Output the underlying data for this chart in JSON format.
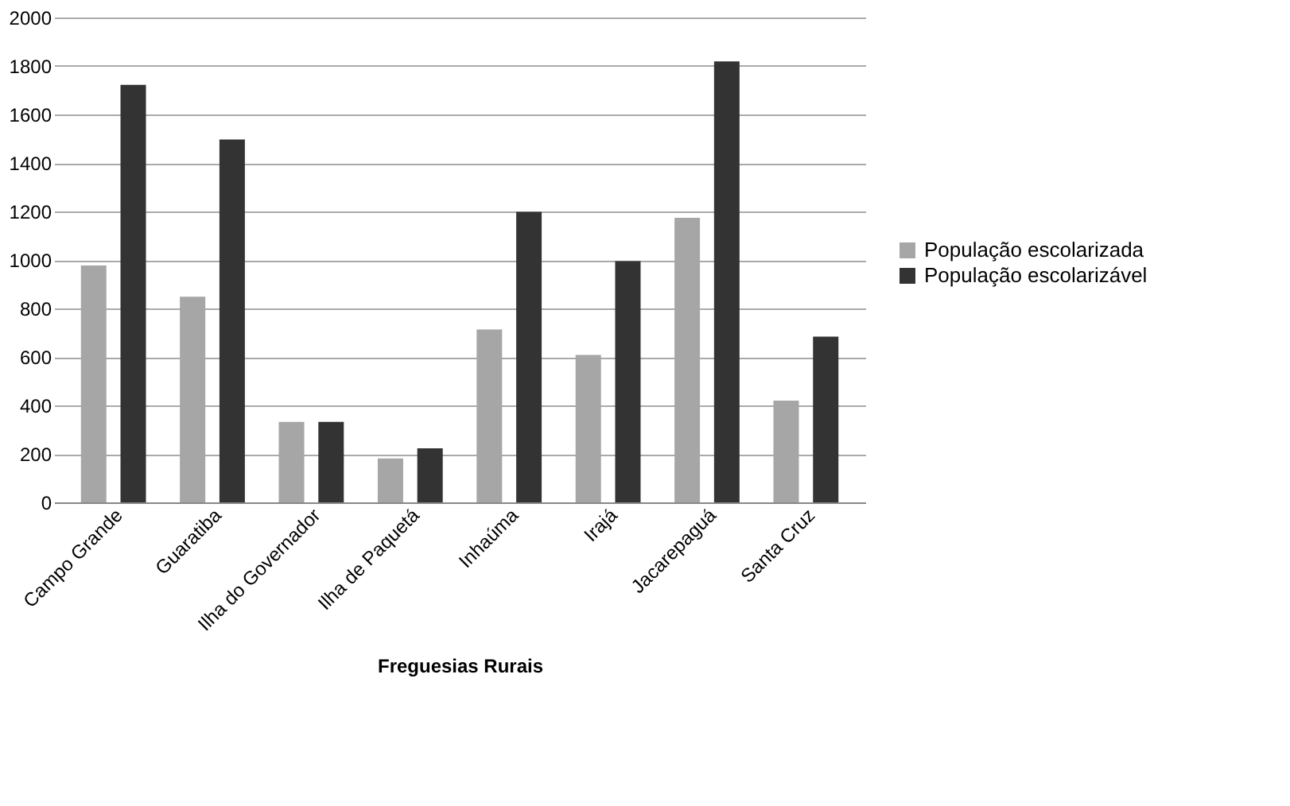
{
  "chart_data": {
    "type": "bar",
    "categories": [
      "Campo Grande",
      "Guaratiba",
      "Ilha do Governador",
      "Ilha de Paquetá",
      "Inhaúma",
      "Irajá",
      "Jacarepaguá",
      "Santa Cruz"
    ],
    "series": [
      {
        "name": "População escolarizada",
        "color": "#a6a6a6",
        "values": [
          977,
          848,
          332,
          181,
          713,
          608,
          1174,
          420
        ]
      },
      {
        "name": "População escolarizável",
        "color": "#333333",
        "values": [
          1722,
          1497,
          332,
          223,
          1198,
          995,
          1819,
          684
        ]
      }
    ],
    "xlabel": "Freguesias Rurais",
    "ylim": [
      0,
      2000
    ],
    "yticks": [
      0,
      200,
      400,
      600,
      800,
      1000,
      1200,
      1400,
      1600,
      1800,
      2000
    ],
    "grid": "y",
    "legend": "right"
  }
}
